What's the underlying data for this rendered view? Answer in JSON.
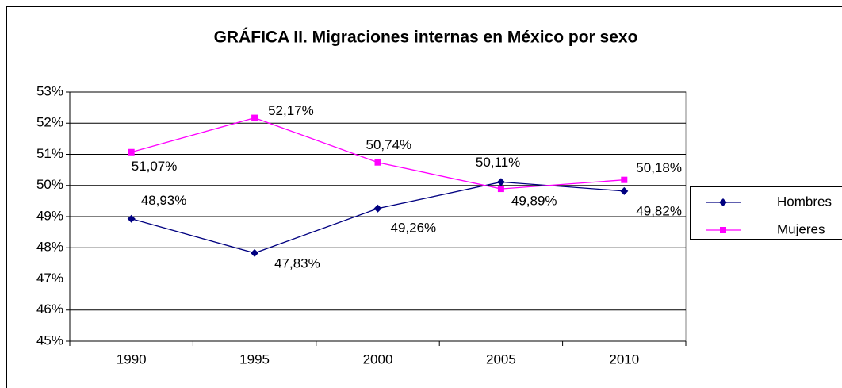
{
  "chart_data": {
    "type": "line",
    "title": "GRÁFICA II. Migraciones internas en México por sexo",
    "categories": [
      "1990",
      "1995",
      "2000",
      "2005",
      "2010"
    ],
    "series": [
      {
        "name": "Hombres",
        "color": "#000080",
        "marker": "diamond",
        "values": [
          48.93,
          47.83,
          49.26,
          50.11,
          49.82
        ],
        "value_labels": [
          "48,93%",
          "47,83%",
          "49,26%",
          "50,11%",
          "49,82%"
        ]
      },
      {
        "name": "Mujeres",
        "color": "#ff00ff",
        "marker": "square",
        "values": [
          51.07,
          52.17,
          50.74,
          49.89,
          50.18
        ],
        "value_labels": [
          "51,07%",
          "52,17%",
          "50,74%",
          "49,89%",
          "50,18%"
        ]
      }
    ],
    "ylim": [
      45,
      53
    ],
    "yticks": [
      {
        "value": 45,
        "label": "45%"
      },
      {
        "value": 46,
        "label": "46%"
      },
      {
        "value": 47,
        "label": "47%"
      },
      {
        "value": 48,
        "label": "48%"
      },
      {
        "value": 49,
        "label": "49%"
      },
      {
        "value": 50,
        "label": "50%"
      },
      {
        "value": 51,
        "label": "51%"
      },
      {
        "value": 52,
        "label": "52%"
      },
      {
        "value": 53,
        "label": "53%"
      }
    ],
    "grid": true,
    "legend": "right"
  }
}
